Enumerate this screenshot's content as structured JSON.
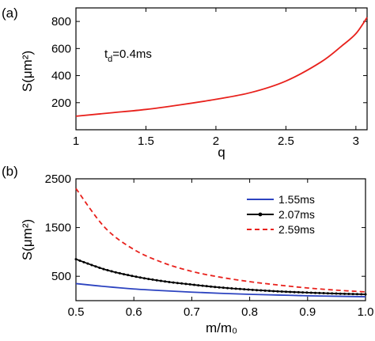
{
  "chart_data": [
    {
      "type": "line",
      "panel_label": "(a)",
      "xlabel": "q",
      "ylabel": "S(μm²)",
      "annotation": {
        "prefix": "t",
        "sub": "d",
        "suffix": "=0.4ms"
      },
      "xlim": [
        1,
        3.08
      ],
      "ylim": [
        0,
        900
      ],
      "xticks": [
        1,
        1.5,
        2,
        2.5,
        3
      ],
      "xtick_labels": [
        "1",
        "1.5",
        "2",
        "2.5",
        "3"
      ],
      "yticks": [
        200,
        400,
        600,
        800
      ],
      "ytick_labels": [
        "200",
        "400",
        "600",
        "800"
      ],
      "series": [
        {
          "color": "#e8211c",
          "x": [
            1.0,
            1.25,
            1.5,
            1.75,
            2.0,
            2.25,
            2.5,
            2.75,
            2.9,
            3.0,
            3.08
          ],
          "y": [
            100,
            125,
            150,
            185,
            225,
            275,
            360,
            500,
            620,
            710,
            830
          ]
        }
      ]
    },
    {
      "type": "line",
      "panel_label": "(b)",
      "xlabel": "m/m₀",
      "ylabel": "S(μm²)",
      "xlim": [
        0.5,
        1.0
      ],
      "ylim": [
        0,
        2500
      ],
      "xticks": [
        0.5,
        0.6,
        0.7,
        0.8,
        0.9,
        1.0
      ],
      "xtick_labels": [
        "0.5",
        "0.6",
        "0.7",
        "0.8",
        "0.9",
        "1.0"
      ],
      "yticks": [
        500,
        1500,
        2500
      ],
      "ytick_labels": [
        "500",
        "1500",
        "2500"
      ],
      "legend_position": "top-right",
      "series": [
        {
          "name": "1.55ms",
          "color": "#2c43c0",
          "style": "solid",
          "x": [
            0.5,
            0.55,
            0.6,
            0.65,
            0.7,
            0.75,
            0.8,
            0.85,
            0.9,
            0.95,
            1.0
          ],
          "y": [
            350,
            290,
            240,
            205,
            175,
            150,
            130,
            115,
            100,
            90,
            80
          ]
        },
        {
          "name": "2.07ms",
          "color": "#000000",
          "style": "solid-dots",
          "x": [
            0.5,
            0.55,
            0.6,
            0.65,
            0.7,
            0.75,
            0.8,
            0.85,
            0.9,
            0.95,
            1.0
          ],
          "y": [
            850,
            640,
            500,
            400,
            330,
            270,
            225,
            190,
            165,
            145,
            130
          ]
        },
        {
          "name": "2.59ms",
          "color": "#e8211c",
          "style": "dashed",
          "x": [
            0.5,
            0.55,
            0.6,
            0.65,
            0.7,
            0.75,
            0.8,
            0.85,
            0.9,
            0.95,
            1.0
          ],
          "y": [
            2300,
            1500,
            1050,
            780,
            600,
            480,
            390,
            320,
            260,
            215,
            180
          ]
        }
      ]
    }
  ]
}
